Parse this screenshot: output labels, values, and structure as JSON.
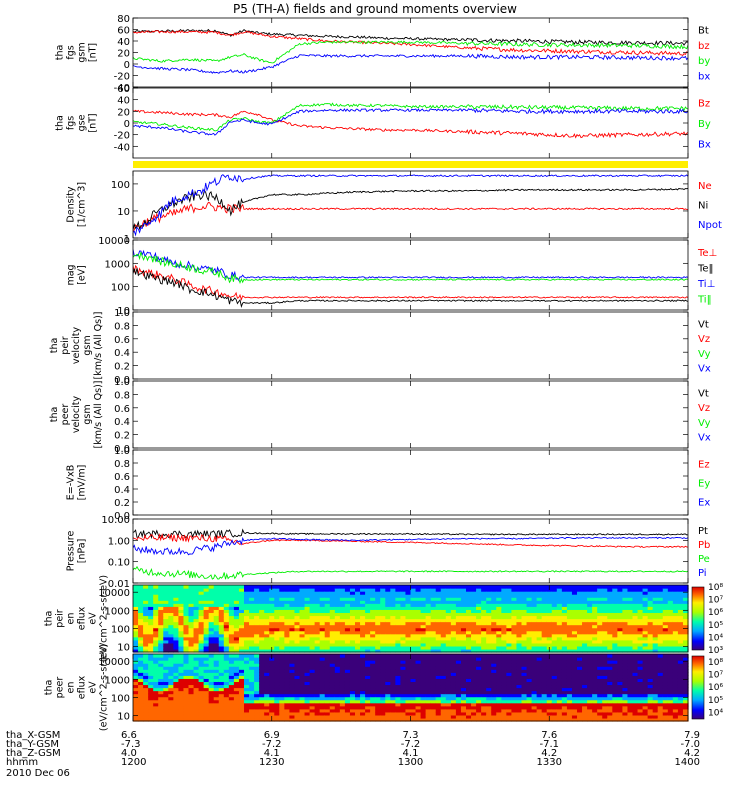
{
  "title": "P5 (TH-A) fields and ground moments overview",
  "date_label": "2010 Dec 06",
  "colors": {
    "black": "#000000",
    "red": "#ff0000",
    "green": "#00ee00",
    "blue": "#0000ff",
    "yellow": "#ffee00"
  },
  "ephemeris": {
    "row_labels": [
      "tha_X-GSM",
      "tha_Y-GSM",
      "tha_Z-GSM",
      "hhmm"
    ],
    "columns": [
      {
        "time": "1200",
        "x": "6.6",
        "y": "-7.3",
        "z": "4.0"
      },
      {
        "time": "1230",
        "x": "6.9",
        "y": "-7.2",
        "z": "4.1"
      },
      {
        "time": "1300",
        "x": "7.3",
        "y": "-7.2",
        "z": "4.1"
      },
      {
        "time": "1330",
        "x": "7.6",
        "y": "-7.1",
        "z": "4.2"
      },
      {
        "time": "1400",
        "x": "7.9",
        "y": "-7.0",
        "z": "4.2"
      }
    ]
  },
  "chart_data": [
    {
      "type": "line",
      "id": "fgs_gsm",
      "ylabel_lines": [
        "tha",
        "fgs",
        "gsm",
        "[nT]"
      ],
      "ylim": [
        -40,
        80
      ],
      "ticks": [
        -40,
        -20,
        0,
        20,
        40,
        60,
        80
      ],
      "legend": [
        {
          "name": "Bt",
          "color": "#000000"
        },
        {
          "name": "bz",
          "color": "#ff0000"
        },
        {
          "name": "by",
          "color": "#00ee00"
        },
        {
          "name": "bx",
          "color": "#0000ff"
        }
      ],
      "x_hours": [
        12.0,
        12.1,
        12.2,
        12.3,
        12.35,
        12.4,
        12.45,
        12.5,
        12.6,
        12.7,
        12.8,
        12.9,
        13.0,
        13.2,
        13.4,
        13.6,
        13.8,
        14.0
      ],
      "series": [
        {
          "name": "Bt",
          "color": "#000000",
          "values": [
            56,
            57,
            58,
            58,
            50,
            58,
            54,
            52,
            50,
            48,
            47,
            45,
            44,
            42,
            40,
            38,
            37,
            36
          ]
        },
        {
          "name": "bz",
          "color": "#ff0000",
          "values": [
            55,
            56,
            56,
            55,
            50,
            56,
            52,
            48,
            44,
            40,
            38,
            36,
            34,
            28,
            24,
            22,
            20,
            18
          ]
        },
        {
          "name": "by",
          "color": "#00ee00",
          "values": [
            10,
            5,
            8,
            5,
            12,
            16,
            8,
            2,
            35,
            38,
            38,
            38,
            38,
            36,
            34,
            33,
            32,
            30
          ]
        },
        {
          "name": "bx",
          "color": "#0000ff",
          "values": [
            -4,
            -8,
            -10,
            -15,
            -12,
            -14,
            -10,
            -5,
            15,
            14,
            14,
            14,
            14,
            14,
            12,
            12,
            11,
            10
          ]
        }
      ]
    },
    {
      "type": "line",
      "id": "fgs_gse",
      "ylabel_lines": [
        "tha",
        "fgs",
        "gse",
        "[nT]"
      ],
      "ylim": [
        -60,
        60
      ],
      "ticks": [
        -40,
        -20,
        0,
        20,
        40,
        60
      ],
      "legend": [
        {
          "name": "Bz",
          "color": "#ff0000"
        },
        {
          "name": "By",
          "color": "#00ee00"
        },
        {
          "name": "Bx",
          "color": "#0000ff"
        }
      ],
      "x_hours": [
        12.0,
        12.1,
        12.2,
        12.3,
        12.35,
        12.4,
        12.45,
        12.5,
        12.6,
        12.7,
        12.8,
        12.9,
        13.0,
        13.2,
        13.4,
        13.6,
        13.8,
        14.0
      ],
      "series": [
        {
          "name": "Bz",
          "color": "#ff0000",
          "values": [
            20,
            18,
            15,
            14,
            10,
            20,
            15,
            5,
            -5,
            -8,
            -10,
            -12,
            -12,
            -15,
            -18,
            -22,
            -20,
            -18
          ]
        },
        {
          "name": "By",
          "color": "#00ee00",
          "values": [
            2,
            -2,
            -8,
            -12,
            5,
            8,
            2,
            0,
            30,
            32,
            30,
            30,
            28,
            28,
            27,
            26,
            25,
            25
          ]
        },
        {
          "name": "Bx",
          "color": "#0000ff",
          "values": [
            -5,
            -8,
            -15,
            -20,
            2,
            5,
            0,
            -2,
            20,
            22,
            22,
            22,
            22,
            22,
            20,
            20,
            20,
            20
          ]
        }
      ]
    },
    {
      "type": "line",
      "id": "density",
      "ylabel_lines": [
        "Density",
        "[1/cm^3]"
      ],
      "scale": "log",
      "ylim": [
        1,
        300
      ],
      "ticks": [
        1,
        10,
        100
      ],
      "legend": [
        {
          "name": "Ne",
          "color": "#ff0000"
        },
        {
          "name": "Ni",
          "color": "#000000"
        },
        {
          "name": "Npot",
          "color": "#0000ff"
        }
      ],
      "x_hours": [
        12.0,
        12.05,
        12.1,
        12.15,
        12.2,
        12.25,
        12.3,
        12.35,
        12.4,
        12.45,
        12.5,
        12.6,
        12.8,
        13.0,
        13.2,
        13.4,
        13.6,
        13.8,
        14.0
      ],
      "series": [
        {
          "name": "Ne",
          "color": "#ff0000",
          "values": [
            2,
            4,
            6,
            8,
            12,
            15,
            14,
            12,
            12,
            12,
            12,
            12,
            12,
            12,
            12,
            12,
            12,
            12,
            12
          ]
        },
        {
          "name": "Ni",
          "color": "#000000",
          "values": [
            2,
            4,
            10,
            20,
            30,
            40,
            30,
            10,
            20,
            30,
            40,
            40,
            50,
            55,
            55,
            60,
            60,
            60,
            65
          ]
        },
        {
          "name": "Npot",
          "color": "#0000ff",
          "values": [
            1.5,
            3,
            8,
            25,
            40,
            60,
            120,
            200,
            150,
            180,
            200,
            200,
            200,
            200,
            200,
            200,
            200,
            200,
            200
          ]
        }
      ]
    },
    {
      "type": "line",
      "id": "temperature",
      "ylabel_lines": [
        "mag",
        "[eV]"
      ],
      "scale": "log",
      "ylim": [
        10,
        10000
      ],
      "ticks": [
        10,
        100,
        1000,
        10000
      ],
      "legend": [
        {
          "name": "Te⊥",
          "color": "#ff0000"
        },
        {
          "name": "Te‖",
          "color": "#000000"
        },
        {
          "name": "Ti⊥",
          "color": "#0000ff"
        },
        {
          "name": "Ti‖",
          "color": "#00ee00"
        }
      ],
      "x_hours": [
        12.0,
        12.05,
        12.1,
        12.15,
        12.2,
        12.25,
        12.3,
        12.35,
        12.4,
        12.5,
        12.6,
        12.8,
        13.0,
        13.2,
        13.4,
        13.6,
        13.8,
        14.0
      ],
      "series": [
        {
          "name": "Te⊥",
          "color": "#ff0000",
          "values": [
            600,
            400,
            300,
            200,
            120,
            80,
            60,
            40,
            35,
            35,
            35,
            35,
            35,
            35,
            35,
            35,
            35,
            35
          ]
        },
        {
          "name": "Te‖",
          "color": "#000000",
          "values": [
            500,
            300,
            200,
            150,
            80,
            60,
            40,
            25,
            20,
            20,
            25,
            25,
            25,
            25,
            25,
            25,
            25,
            25
          ]
        },
        {
          "name": "Ti⊥",
          "color": "#0000ff",
          "values": [
            3000,
            2500,
            1500,
            1000,
            800,
            600,
            500,
            300,
            250,
            250,
            250,
            250,
            250,
            250,
            250,
            250,
            250,
            250
          ]
        },
        {
          "name": "Ti‖",
          "color": "#00ee00",
          "values": [
            2500,
            2000,
            1200,
            900,
            700,
            500,
            400,
            220,
            200,
            200,
            200,
            200,
            200,
            200,
            200,
            200,
            200,
            200
          ]
        }
      ]
    },
    {
      "type": "line",
      "id": "peir_velocity",
      "ylabel_lines": [
        "tha",
        "peir",
        "velocity",
        "gsm",
        "[km/s (All Qs)]"
      ],
      "ylim": [
        0,
        1
      ],
      "ticks": [
        0.0,
        0.2,
        0.4,
        0.6,
        0.8,
        1.0
      ],
      "legend": [
        {
          "name": "Vt",
          "color": "#000000"
        },
        {
          "name": "Vz",
          "color": "#ff0000"
        },
        {
          "name": "Vy",
          "color": "#00ee00"
        },
        {
          "name": "Vx",
          "color": "#0000ff"
        }
      ],
      "series": []
    },
    {
      "type": "line",
      "id": "peer_velocity",
      "ylabel_lines": [
        "tha",
        "peer",
        "velocity",
        "gsm",
        "[km/s (All Qs)]"
      ],
      "ylim": [
        0,
        1
      ],
      "ticks": [
        0.0,
        0.2,
        0.4,
        0.6,
        0.8,
        1.0
      ],
      "legend": [
        {
          "name": "Vt",
          "color": "#000000"
        },
        {
          "name": "Vz",
          "color": "#ff0000"
        },
        {
          "name": "Vy",
          "color": "#00ee00"
        },
        {
          "name": "Vx",
          "color": "#0000ff"
        }
      ],
      "series": []
    },
    {
      "type": "line",
      "id": "efield",
      "ylabel_lines": [
        "E=-VxB",
        "[mV/m]"
      ],
      "ylim": [
        0,
        1
      ],
      "ticks": [
        0.0,
        0.2,
        0.4,
        0.6,
        0.8,
        1.0
      ],
      "legend": [
        {
          "name": "Ez",
          "color": "#ff0000"
        },
        {
          "name": "Ey",
          "color": "#00ee00"
        },
        {
          "name": "Ex",
          "color": "#0000ff"
        }
      ],
      "series": []
    },
    {
      "type": "line",
      "id": "pressure",
      "ylabel_lines": [
        "Pressure",
        "[nPa]"
      ],
      "scale": "log",
      "ylim": [
        0.01,
        10
      ],
      "ticks": [
        0.01,
        0.1,
        1,
        10
      ],
      "tick_labels": [
        "0.01",
        "0.10",
        "1.00",
        "10.00"
      ],
      "legend": [
        {
          "name": "Pt",
          "color": "#000000"
        },
        {
          "name": "Pb",
          "color": "#ff0000"
        },
        {
          "name": "Pe",
          "color": "#00ee00"
        },
        {
          "name": "Pi",
          "color": "#0000ff"
        }
      ],
      "x_hours": [
        12.0,
        12.1,
        12.2,
        12.3,
        12.4,
        12.5,
        12.6,
        12.8,
        13.0,
        13.2,
        13.4,
        13.6,
        13.8,
        14.0
      ],
      "series": [
        {
          "name": "Pt",
          "color": "#000000",
          "values": [
            2,
            2,
            2,
            2,
            2.2,
            2.1,
            2,
            2,
            2,
            1.9,
            1.9,
            1.9,
            1.9,
            1.9
          ]
        },
        {
          "name": "Pb",
          "color": "#ff0000",
          "values": [
            1.2,
            1.3,
            1.3,
            1.2,
            0.7,
            1.0,
            1.0,
            0.9,
            0.8,
            0.7,
            0.6,
            0.55,
            0.5,
            0.5
          ]
        },
        {
          "name": "Pe",
          "color": "#00ee00",
          "values": [
            0.04,
            0.03,
            0.025,
            0.02,
            0.025,
            0.03,
            0.035,
            0.035,
            0.035,
            0.035,
            0.035,
            0.035,
            0.035,
            0.035
          ]
        },
        {
          "name": "Pi",
          "color": "#0000ff",
          "values": [
            0.4,
            0.3,
            0.3,
            0.5,
            1.0,
            1.2,
            1.1,
            1.0,
            1.1,
            1.2,
            1.2,
            1.3,
            1.3,
            1.3
          ]
        }
      ]
    },
    {
      "type": "heatmap",
      "id": "peir_spectrogram",
      "ylabel_lines": [
        "tha",
        "peir",
        "en",
        "eflux",
        "eV",
        "(eV/cm^2-s-sr-eV)"
      ],
      "scale": "log",
      "ylim": [
        5,
        25000
      ],
      "ticks": [
        10,
        100,
        1000,
        10000
      ],
      "colorbar_range": [
        1000,
        100000000
      ],
      "colorbar_ticks": [
        1000,
        10000,
        100000,
        1000000,
        10000000,
        100000000
      ]
    },
    {
      "type": "heatmap",
      "id": "peer_spectrogram",
      "ylabel_lines": [
        "tha",
        "peer",
        "en",
        "eflux",
        "eV",
        "(eV/cm^2-s-sr-eV)"
      ],
      "scale": "log",
      "ylim": [
        5,
        25000
      ],
      "ticks": [
        10,
        100,
        1000,
        10000
      ],
      "colorbar_range": [
        3000,
        300000000
      ],
      "colorbar_ticks": [
        10000,
        100000,
        1000000,
        10000000,
        100000000
      ]
    }
  ]
}
